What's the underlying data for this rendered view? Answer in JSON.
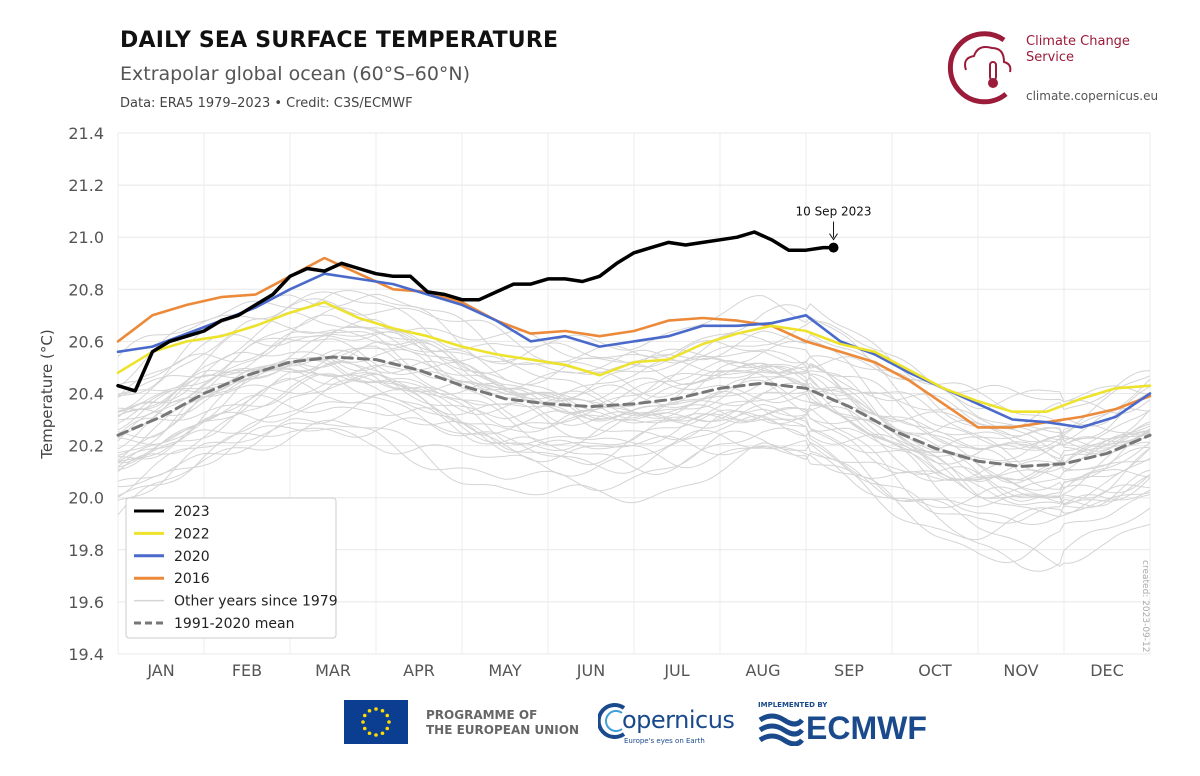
{
  "header": {
    "title": "DAILY SEA SURFACE TEMPERATURE",
    "subtitle": "Extrapolar global ocean (60°S–60°N)",
    "credit": "Data: ERA5 1979–2023 • Credit: C3S/ECMWF"
  },
  "brand": {
    "name": "Climate Change Service",
    "url": "climate.copernicus.eu",
    "color": "#9b1b3a",
    "icon": "thermometer-cloud-icon"
  },
  "created": "created: 2023-09-12",
  "footer": {
    "eu_text": "PROGRAMME OF THE EUROPEAN UNION",
    "eu_line1": "PROGRAMME OF",
    "eu_line2": "THE EUROPEAN UNION",
    "copernicus": "opernicus",
    "copernicus_tag": "Europe's eyes on Earth",
    "ecmwf_impl": "IMPLEMENTED BY",
    "ecmwf": "ECMWF"
  },
  "chart_data": {
    "type": "line",
    "title": "DAILY SEA SURFACE TEMPERATURE",
    "subtitle": "Extrapolar global ocean (60°S–60°N)",
    "xlabel": "",
    "ylabel": "Temperature (°C)",
    "ylim": [
      19.4,
      21.4
    ],
    "yticks": [
      19.4,
      19.6,
      19.8,
      20.0,
      20.2,
      20.4,
      20.6,
      20.8,
      21.0,
      21.2,
      21.4
    ],
    "ytick_labels": [
      "19.4",
      "19.6",
      "19.8",
      "20.0",
      "20.2",
      "20.4",
      "20.6",
      "20.8",
      "21.0",
      "21.2",
      "21.4"
    ],
    "x_unit": "month",
    "xlim": [
      0,
      12
    ],
    "months": [
      "JAN",
      "FEB",
      "MAR",
      "APR",
      "MAY",
      "JUN",
      "JUL",
      "AUG",
      "SEP",
      "OCT",
      "NOV",
      "DEC"
    ],
    "grid": true,
    "legend_position": "bottom-left",
    "annotation": {
      "text": "10 Sep 2023",
      "x": 8.32,
      "y": 20.96
    },
    "series": [
      {
        "name": "2023",
        "color": "#000000",
        "style": "solid",
        "width": 3.5,
        "endpoint": true,
        "x": [
          0,
          0.2,
          0.4,
          0.6,
          0.8,
          1.0,
          1.2,
          1.4,
          1.6,
          1.8,
          2.0,
          2.2,
          2.4,
          2.6,
          2.8,
          3.0,
          3.2,
          3.4,
          3.6,
          3.8,
          4.0,
          4.2,
          4.4,
          4.6,
          4.8,
          5.0,
          5.2,
          5.4,
          5.6,
          5.8,
          6.0,
          6.2,
          6.4,
          6.6,
          6.8,
          7.0,
          7.2,
          7.4,
          7.6,
          7.8,
          8.0,
          8.2,
          8.32
        ],
        "y": [
          20.43,
          20.41,
          20.56,
          20.6,
          20.62,
          20.64,
          20.68,
          20.7,
          20.74,
          20.78,
          20.85,
          20.88,
          20.87,
          20.9,
          20.88,
          20.86,
          20.85,
          20.85,
          20.79,
          20.78,
          20.76,
          20.76,
          20.79,
          20.82,
          20.82,
          20.84,
          20.84,
          20.83,
          20.85,
          20.9,
          20.94,
          20.96,
          20.98,
          20.97,
          20.98,
          20.99,
          21.0,
          21.02,
          20.99,
          20.95,
          20.95,
          20.96,
          20.96
        ]
      },
      {
        "name": "2022",
        "color": "#ede32c",
        "style": "solid",
        "width": 2.6,
        "endpoint": false,
        "x": [
          0,
          0.4,
          0.8,
          1.2,
          1.6,
          2.0,
          2.4,
          2.8,
          3.2,
          3.6,
          4.0,
          4.4,
          4.8,
          5.2,
          5.6,
          6.0,
          6.4,
          6.8,
          7.2,
          7.6,
          8.0,
          8.4,
          8.8,
          9.2,
          9.6,
          10.0,
          10.4,
          10.8,
          11.2,
          11.6,
          12.0
        ],
        "y": [
          20.48,
          20.56,
          20.6,
          20.62,
          20.66,
          20.71,
          20.75,
          20.69,
          20.65,
          20.62,
          20.58,
          20.55,
          20.53,
          20.51,
          20.47,
          20.52,
          20.53,
          20.59,
          20.63,
          20.66,
          20.64,
          20.59,
          20.56,
          20.49,
          20.42,
          20.37,
          20.33,
          20.33,
          20.38,
          20.42,
          20.43
        ]
      },
      {
        "name": "2020",
        "color": "#4a6acb",
        "style": "solid",
        "width": 2.6,
        "endpoint": false,
        "x": [
          0,
          0.4,
          0.8,
          1.2,
          1.6,
          2.0,
          2.4,
          2.8,
          3.2,
          3.6,
          4.0,
          4.4,
          4.8,
          5.2,
          5.6,
          6.0,
          6.4,
          6.8,
          7.2,
          7.6,
          8.0,
          8.4,
          8.8,
          9.2,
          9.6,
          10.0,
          10.4,
          10.8,
          11.2,
          11.6,
          12.0
        ],
        "y": [
          20.56,
          20.58,
          20.63,
          20.68,
          20.73,
          20.8,
          20.86,
          20.84,
          20.82,
          20.78,
          20.74,
          20.68,
          20.6,
          20.62,
          20.58,
          20.6,
          20.62,
          20.66,
          20.66,
          20.67,
          20.7,
          20.6,
          20.55,
          20.48,
          20.42,
          20.36,
          20.3,
          20.29,
          20.27,
          20.31,
          20.4
        ]
      },
      {
        "name": "2016",
        "color": "#ec8a3a",
        "style": "solid",
        "width": 2.6,
        "endpoint": false,
        "x": [
          0,
          0.4,
          0.8,
          1.2,
          1.6,
          2.0,
          2.4,
          2.8,
          3.2,
          3.6,
          4.0,
          4.4,
          4.8,
          5.2,
          5.6,
          6.0,
          6.4,
          6.8,
          7.2,
          7.6,
          8.0,
          8.4,
          8.8,
          9.2,
          9.6,
          10.0,
          10.4,
          10.8,
          11.2,
          11.6,
          12.0
        ],
        "y": [
          20.6,
          20.7,
          20.74,
          20.77,
          20.78,
          20.85,
          20.92,
          20.86,
          20.8,
          20.79,
          20.75,
          20.68,
          20.63,
          20.64,
          20.62,
          20.64,
          20.68,
          20.69,
          20.68,
          20.66,
          20.6,
          20.56,
          20.52,
          20.45,
          20.36,
          20.27,
          20.27,
          20.29,
          20.31,
          20.34,
          20.39
        ]
      },
      {
        "name": "1991-2020 mean",
        "color": "#777777",
        "style": "dashed",
        "width": 3,
        "endpoint": false,
        "x": [
          0,
          0.5,
          1.0,
          1.5,
          2.0,
          2.5,
          3.0,
          3.5,
          4.0,
          4.5,
          5.0,
          5.5,
          6.0,
          6.5,
          7.0,
          7.5,
          8.0,
          8.5,
          9.0,
          9.5,
          10.0,
          10.5,
          11.0,
          11.5,
          12.0
        ],
        "y": [
          20.24,
          20.31,
          20.4,
          20.47,
          20.52,
          20.54,
          20.53,
          20.49,
          20.43,
          20.38,
          20.36,
          20.35,
          20.36,
          20.38,
          20.42,
          20.44,
          20.42,
          20.35,
          20.26,
          20.19,
          20.14,
          20.12,
          20.13,
          20.17,
          20.24
        ]
      }
    ],
    "other_years": {
      "name": "Other years since 1979",
      "color": "#d4d4d4",
      "mean_x": [
        0,
        0.5,
        1.0,
        1.5,
        2.0,
        2.5,
        3.0,
        3.5,
        4.0,
        4.5,
        5.0,
        5.5,
        6.0,
        6.5,
        7.0,
        7.5,
        8.0,
        8.5,
        9.0,
        9.5,
        10.0,
        10.5,
        11.0,
        11.5,
        12.0
      ],
      "mean_y": [
        20.24,
        20.31,
        20.4,
        20.47,
        20.52,
        20.54,
        20.53,
        20.49,
        20.43,
        20.38,
        20.36,
        20.35,
        20.36,
        20.38,
        20.42,
        20.44,
        20.42,
        20.35,
        20.26,
        20.19,
        20.14,
        20.12,
        20.13,
        20.17,
        20.24
      ],
      "offsets": [
        -0.34,
        -0.3,
        -0.27,
        -0.24,
        -0.22,
        -0.2,
        -0.18,
        -0.16,
        -0.15,
        -0.13,
        -0.12,
        -0.1,
        -0.09,
        -0.08,
        -0.07,
        -0.06,
        -0.05,
        -0.04,
        -0.03,
        -0.02,
        -0.01,
        0.0,
        0.01,
        0.02,
        0.03,
        0.04,
        0.05,
        0.06,
        0.07,
        0.08,
        0.09,
        0.1,
        0.12,
        0.14,
        0.16,
        0.18,
        0.2,
        0.22,
        0.24,
        0.26
      ]
    }
  },
  "legend": {
    "entries": [
      {
        "label": "2023",
        "color": "#000000",
        "style": "solid"
      },
      {
        "label": "2022",
        "color": "#ede32c",
        "style": "solid"
      },
      {
        "label": "2020",
        "color": "#4a6acb",
        "style": "solid"
      },
      {
        "label": "2016",
        "color": "#ec8a3a",
        "style": "solid"
      },
      {
        "label": "Other years since 1979",
        "color": "#d4d4d4",
        "style": "solid"
      },
      {
        "label": "1991-2020 mean",
        "color": "#777777",
        "style": "dashed"
      }
    ]
  }
}
